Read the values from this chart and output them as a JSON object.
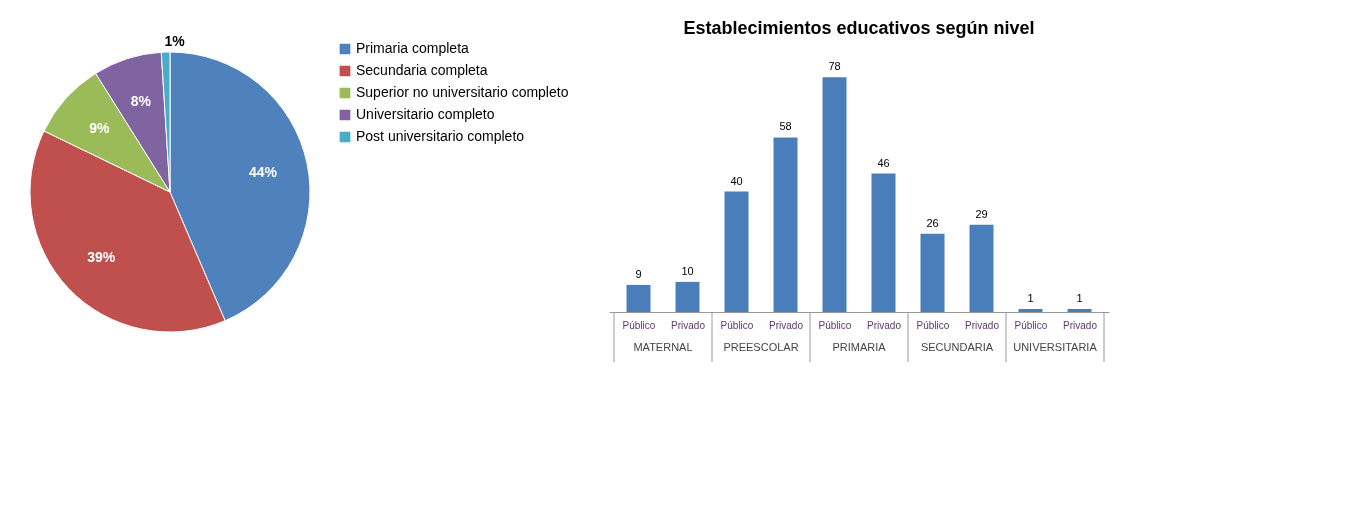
{
  "chart_data": [
    {
      "type": "pie",
      "categories": [
        "Primaria completa",
        "Secundaria completa",
        "Superior no universitario completo",
        "Universitario completo",
        "Post universitario completo"
      ],
      "values": [
        44,
        39,
        9,
        8,
        1
      ],
      "value_labels": [
        "44%",
        "39%",
        "9%",
        "8%",
        "1%"
      ],
      "colors": [
        "#4f81bd",
        "#c0504d",
        "#9bbb59",
        "#8064a2",
        "#4bacc6"
      ],
      "legend": "right"
    },
    {
      "type": "bar",
      "title": "Establecimientos educativos según nivel",
      "categories": [
        "Público",
        "Privado",
        "Público",
        "Privado",
        "Público",
        "Privado",
        "Público",
        "Privado",
        "Público",
        "Privado"
      ],
      "values": [
        9,
        10,
        40,
        58,
        78,
        46,
        26,
        29,
        1,
        1
      ],
      "color": "#4a7ebb",
      "data_labels": true,
      "annotations": [
        "MATERNAL",
        "PREESCOLAR",
        "PRIMARIA",
        "SECUNDARIA",
        "UNIVERSITARIA"
      ]
    }
  ]
}
